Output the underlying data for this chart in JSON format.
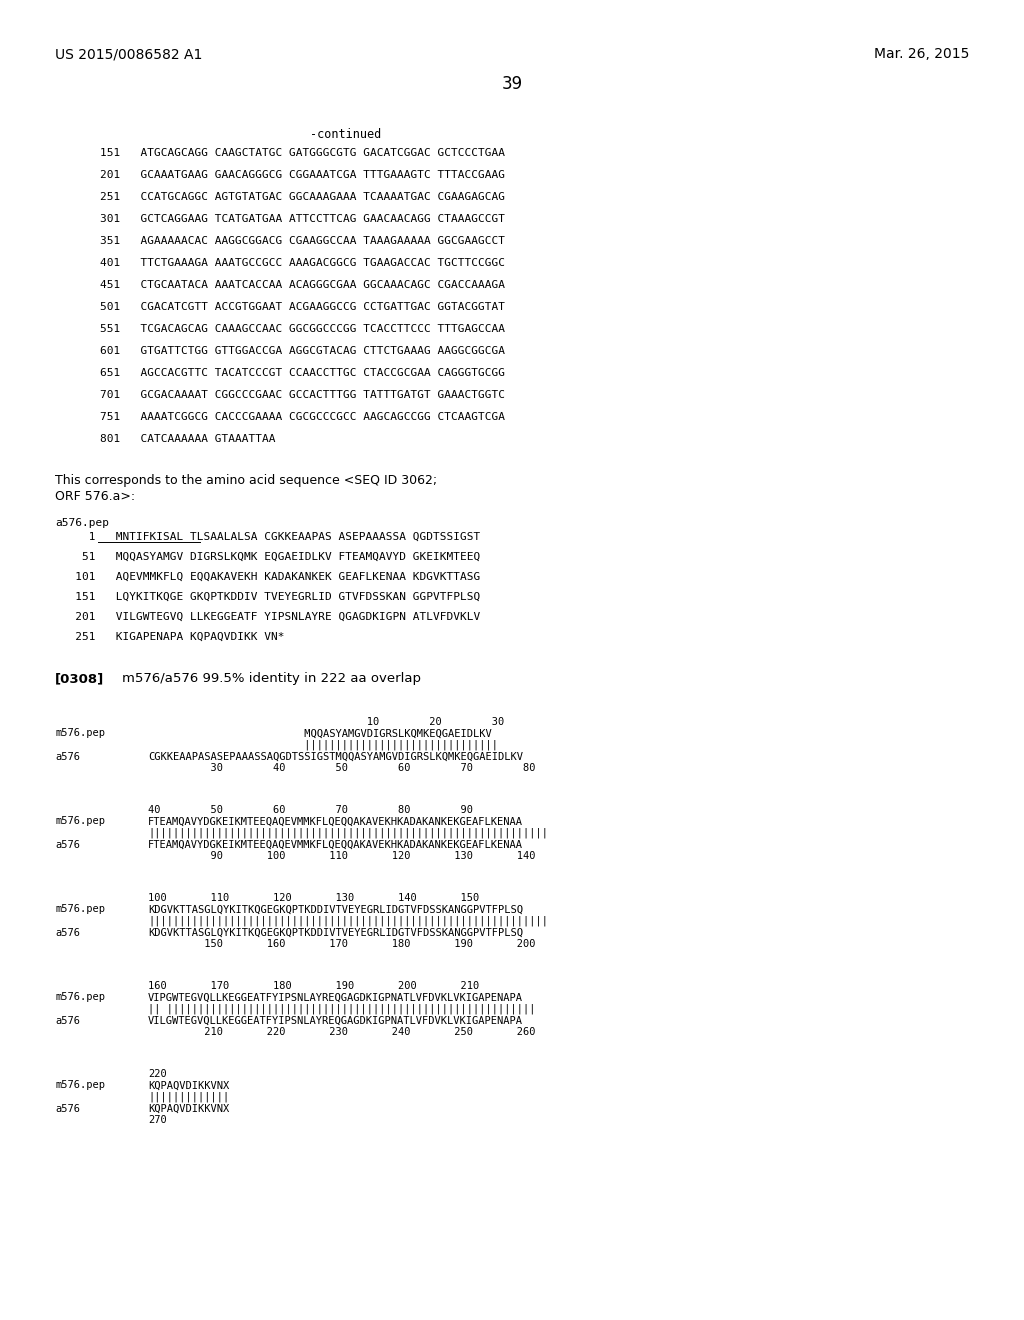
{
  "header_left": "US 2015/0086582 A1",
  "header_right": "Mar. 26, 2015",
  "page_number": "39",
  "background_color": "#ffffff",
  "text_color": "#000000",
  "dna_lines": [
    "151   ATGCAGCAGG CAAGCTATGC GATGGGCGTG GACATCGGAC GCTCCCTGAA",
    "201   GCAAATGAAG GAACAGGGCG CGGAAATCGA TTTGAAAGTC TTTACCGAAG",
    "251   CCATGCAGGC AGTGTATGAC GGCAAAGAAA TCAAAATGAC CGAAGAGCAG",
    "301   GCTCAGGAAG TCATGATGAA ATTCCTTCAG GAACAACAGG CTAAAGCCGT",
    "351   AGAAAAACAC AAGGCGGACG CGAAGGCCAA TAAAGAAAAA GGCGAAGCCT",
    "401   TTCTGAAAGA AAATGCCGCC AAAGACGGCG TGAAGACCAC TGCTTCCGGC",
    "451   CTGCAATACA AAATCACCAA ACAGGGCGAA GGCAAACAGC CGACCAAAGA",
    "501   CGACATCGTT ACCGTGGAAT ACGAAGGCCG CCTGATTGAC GGTACGGTAT",
    "551   TCGACAGCAG CAAAGCCAAC GGCGGCCCGG TCACCTTCCC TTTGAGCCAA",
    "601   GTGATTCTGG GTTGGACCGA AGGCGTACAG CTTCTGAAAG AAGGCGGCGA",
    "651   AGCCACGTTC TACATCCCGT CCAACCTTGC CTACCGCGAA CAGGGTGCGG",
    "701   GCGACAAAAT CGGCCCGAAC GCCACTTTGG TATTTGATGT GAAACTGGTC",
    "751   AAAATCGGCG CACCCGAAAA CGCGCCCGCC AAGCAGCCGG CTCAAGTCGA",
    "801   CATCAAAAAA GTAAATTAA"
  ],
  "corresponds_line1": "This corresponds to the amino acid sequence <SEQ ID 3062;",
  "corresponds_line2": "ORF 576.a>:",
  "pep_label": "a576.pep",
  "pep_lines": [
    "     1   MNTIFKISAL TLSAALALSA CGKKEAAPAS ASEPAAASSA QGDTSSIGST",
    "    51   MQQASYAMGV DIGRSLKQMK EQGAEIDLKV FTEAMQAVYD GKEIKMTEEQ",
    "   101   AQEVMMKFLQ EQQAKAVEKH KADAKANKEK GEAFLKENAA KDGVKTTASG",
    "   151   LQYKITKQGE GKQPTKDDIV TVEYEGRLID GTVFDSSKAN GGPVTFPLSQ",
    "   201   VILGWTEGVQ LLKEGGEATF YIPSNLAYRE QGAGDKIGPN ATLVFDVKLV",
    "   251   KIGAPENAPA KQPAQVDIKK VN*"
  ],
  "paragraph_label": "[0308]",
  "paragraph_text": "m576/a576 99.5% identity in 222 aa overlap",
  "align_blocks": [
    {
      "num_top": "                                   10        20        30",
      "m_label": "m576.pep",
      "m_seq": "                         MQQASYAMGVDIGRSLKQMKEQGAEIDLKV",
      "bars": "                         |||||||||||||||||||||||||||||||",
      "a_label": "a576",
      "a_seq": "CGKKEAAPASASEPAAASSAQGDTSSIGSTMQQASYAMGVDIGRSLKQMKEQGAEIDLKV",
      "num_bot": "          30        40        50        60        70        80"
    },
    {
      "num_top": "40        50        60        70        80        90",
      "m_label": "m576.pep",
      "m_seq": "FTEAMQAVYDGKEIKMTEEQAQEVMMKFLQEQQAKAVEKHKADAKANKEKGEAFLKENAA",
      "bars": "||||||||||||||||||||||||||||||||||||||||||||||||||||||||||||||||",
      "a_label": "a576",
      "a_seq": "FTEAMQAVYDGKEIKMTEEQAQEVMMKFLQEQQAKAVEKHKADAKANKEKGEAFLKENAA",
      "num_bot": "          90       100       110       120       130       140"
    },
    {
      "num_top": "100       110       120       130       140       150",
      "m_label": "m576.pep",
      "m_seq": "KDGVKTTASGLQYKITKQGEGKQPTKDDIVTVEYEGRLIDGTVFDSSKANGGPVTFPLSQ",
      "bars": "||||||||||||||||||||||||||||||||||||||||||||||||||||||||||||||||",
      "a_label": "a576",
      "a_seq": "KDGVKTTASGLQYKITKQGEGKQPTKDDIVTVEYEGRLIDGTVFDSSKANGGPVTFPLSQ",
      "num_bot": "         150       160       170       180       190       200"
    },
    {
      "num_top": "160       170       180       190       200       210",
      "m_label": "m576.pep",
      "m_seq": "VIPGWTEGVQLLKEGGEATFYIPSNLAYREQGAGDKIGPNATLVFDVKLVKIGAPENAPA",
      "bars": "|| |||||||||||||||||||||||||||||||||||||||||||||||||||||||||||",
      "a_label": "a576",
      "a_seq": "VILGWTEGVQLLKEGGEATFYIPSNLAYREQGAGDKIGPNATLVFDVKLVKIGAPENAPA",
      "num_bot": "         210       220       230       240       250       260"
    },
    {
      "num_top": "220",
      "m_label": "m576.pep",
      "m_seq": "KQPAQVDIKKVNX",
      "bars": "|||||||||||||",
      "a_label": "a576",
      "a_seq": "KQPAQVDIKKVNX",
      "num_bot": "270"
    }
  ]
}
